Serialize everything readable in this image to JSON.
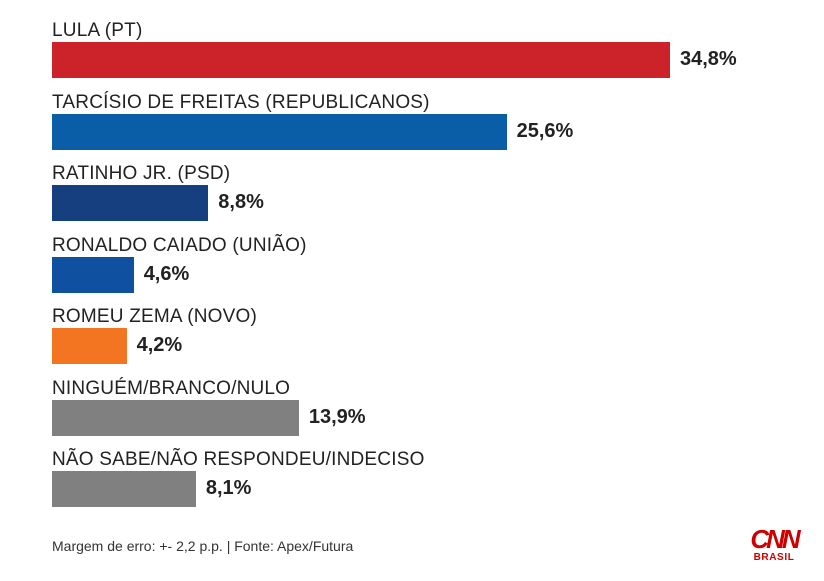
{
  "chart_data": {
    "type": "bar",
    "orientation": "horizontal",
    "categories": [
      "LULA (PT)",
      "TARCÍSIO DE FREITAS (REPUBLICANOS)",
      "RATINHO JR. (PSD)",
      "RONALDO CAIADO (UNIÃO)",
      "ROMEU ZEMA (NOVO)",
      "NINGUÉM/BRANCO/NULO",
      "NÃO SABE/NÃO RESPONDEU/INDECISO"
    ],
    "values": [
      34.8,
      25.6,
      8.8,
      4.6,
      4.2,
      13.9,
      8.1
    ],
    "value_labels": [
      "34,8%",
      "25,6%",
      "8,8%",
      "4,6%",
      "4,2%",
      "13,9%",
      "8,1%"
    ],
    "colors": [
      "#cc2229",
      "#0a5ea8",
      "#153f7e",
      "#1050a0",
      "#f47521",
      "#808080",
      "#808080"
    ],
    "unit": "%",
    "grid": false,
    "legend": "none"
  },
  "footer": "Margem de erro: +- 2,2 p.p. | Fonte: Apex/Futura",
  "logo": {
    "mark": "CNN",
    "sub": "BRASIL"
  }
}
